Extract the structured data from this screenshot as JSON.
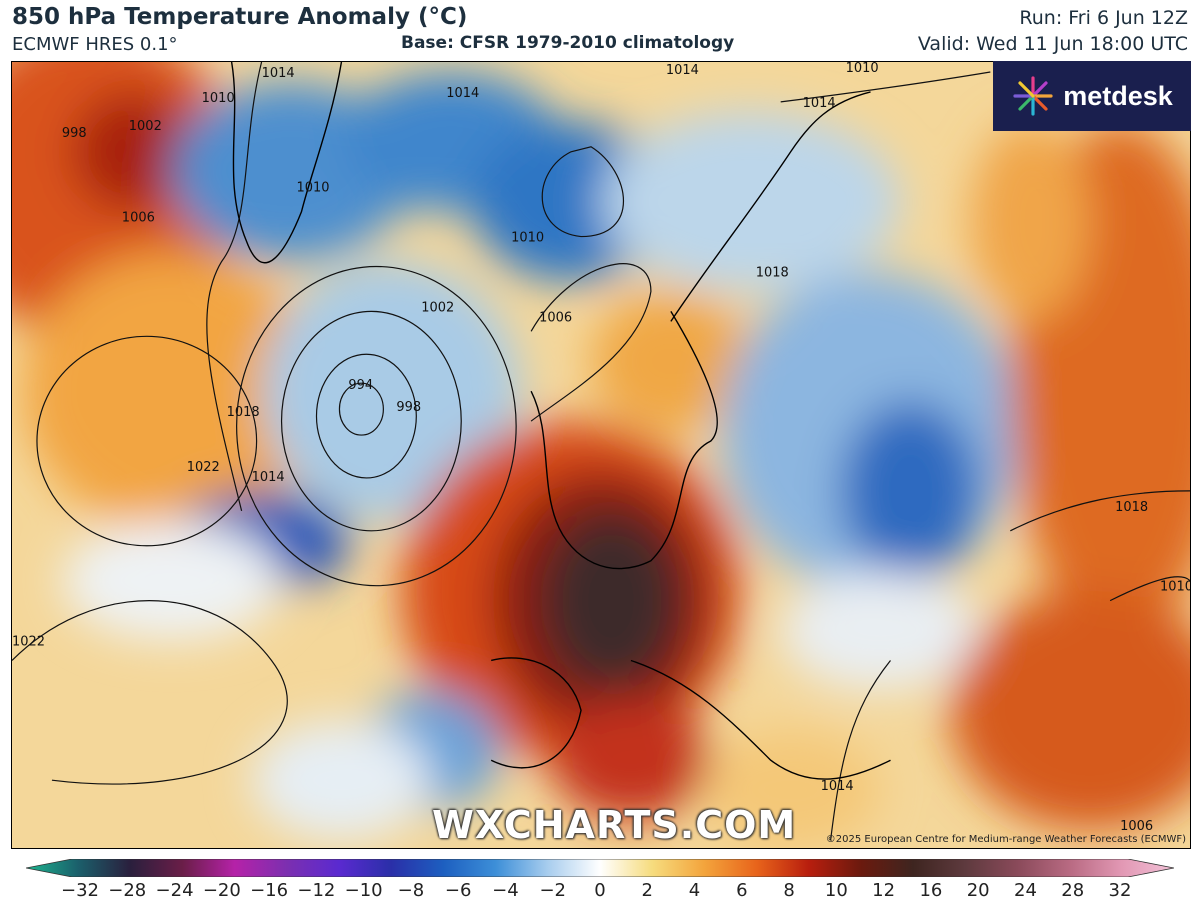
{
  "header": {
    "title": "850 hPa Temperature Anomaly (°C)",
    "model": "ECMWF HRES 0.1°",
    "base": "Base: CFSR 1979-2010 climatology",
    "run": "Run: Fri 6 Jun 12Z",
    "valid": "Valid: Wed 11 Jun 18:00 UTC"
  },
  "logo": {
    "text": "metdesk",
    "icon": "metdesk-burst-icon"
  },
  "watermark": "WXCHARTS.COM",
  "copyright": "©2025 European Centre for Medium-range Weather Forecasts (ECMWF)",
  "isobar_labels": [
    "998",
    "1002",
    "1014",
    "1010",
    "1014",
    "1010",
    "1014",
    "1014",
    "1010",
    "1006",
    "1010",
    "1002",
    "1006",
    "994",
    "998",
    "1018",
    "1022",
    "1014",
    "1022",
    "1018",
    "1014",
    "1018",
    "1010",
    "1006"
  ],
  "colorbar": {
    "ticks": [
      "−32",
      "−28",
      "−24",
      "−20",
      "−16",
      "−12",
      "−10",
      "−8",
      "−6",
      "−4",
      "−2",
      "0",
      "2",
      "4",
      "6",
      "8",
      "10",
      "12",
      "16",
      "20",
      "24",
      "28",
      "32"
    ],
    "colors": [
      "#1cb58f",
      "#1b5f6b",
      "#2a1f3d",
      "#6a1e48",
      "#b522a8",
      "#7c2fb0",
      "#5a2ad0",
      "#2a2fa8",
      "#1d5fc0",
      "#3d8fd8",
      "#a8cdee",
      "#ffffff",
      "#f6dc7e",
      "#f3a43c",
      "#e8641b",
      "#b81e0e",
      "#6b1a0e",
      "#3e2520",
      "#5e3a3e",
      "#8a4a5a",
      "#b86a82",
      "#e298b4",
      "#f2c2d8"
    ]
  }
}
